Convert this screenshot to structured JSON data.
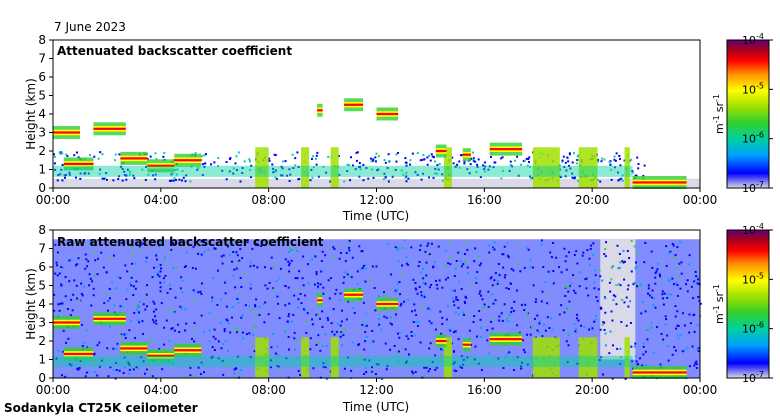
{
  "date_label": "7 June 2023",
  "footer_label": "Sodankyla CT25K ceilometer",
  "colors": {
    "clear": "#d9d9e8",
    "scale": [
      "#d9d9e8",
      "#0000ff",
      "#00a0ff",
      "#00d0a0",
      "#30d030",
      "#a0e000",
      "#ffff00",
      "#ff9000",
      "#ff0000",
      "#a00020",
      "#600080"
    ]
  },
  "chart_data": [
    {
      "type": "heatmap",
      "title": "Attenuated backscatter coefficient",
      "xlabel": "Time (UTC)",
      "ylabel": "Height (km)",
      "x_ticks": [
        "00:00",
        "04:00",
        "08:00",
        "12:00",
        "16:00",
        "20:00",
        "00:00"
      ],
      "y_ticks": [
        "0",
        "1",
        "2",
        "3",
        "4",
        "5",
        "6",
        "7",
        "8"
      ],
      "xlim_hours": [
        0,
        24
      ],
      "ylim_km": [
        0,
        8
      ],
      "colorbar": {
        "scale": "log",
        "range": [
          1e-07,
          0.0001
        ],
        "ticks": [
          "10",
          "10",
          "10",
          "10"
        ],
        "tick_exponents": [
          "-7",
          "-6",
          "-5",
          "-4"
        ],
        "unit": "m",
        "unit_exp1": "-1",
        "unit_sr": "sr",
        "unit_exp2": "-1"
      },
      "layers": [
        {
          "start_h": 0.0,
          "end_h": 1.0,
          "height_km": 3.0
        },
        {
          "start_h": 1.5,
          "end_h": 2.7,
          "height_km": 3.2
        },
        {
          "start_h": 0.4,
          "end_h": 1.5,
          "height_km": 1.3
        },
        {
          "start_h": 2.5,
          "end_h": 3.5,
          "height_km": 1.6
        },
        {
          "start_h": 3.5,
          "end_h": 4.5,
          "height_km": 1.2
        },
        {
          "start_h": 4.5,
          "end_h": 5.5,
          "height_km": 1.5
        },
        {
          "start_h": 9.8,
          "end_h": 10.0,
          "height_km": 4.2
        },
        {
          "start_h": 10.8,
          "end_h": 11.5,
          "height_km": 4.5
        },
        {
          "start_h": 12.0,
          "end_h": 12.8,
          "height_km": 4.0
        },
        {
          "start_h": 14.2,
          "end_h": 14.6,
          "height_km": 2.0
        },
        {
          "start_h": 15.2,
          "end_h": 15.5,
          "height_km": 1.8
        },
        {
          "start_h": 16.2,
          "end_h": 17.4,
          "height_km": 2.1
        },
        {
          "start_h": 21.5,
          "end_h": 23.5,
          "height_km": 0.3
        }
      ],
      "precipitation_columns": [
        {
          "start_h": 7.5,
          "end_h": 8.0
        },
        {
          "start_h": 9.2,
          "end_h": 9.5
        },
        {
          "start_h": 10.3,
          "end_h": 10.6
        },
        {
          "start_h": 14.5,
          "end_h": 14.8
        },
        {
          "start_h": 17.8,
          "end_h": 18.8
        },
        {
          "start_h": 19.5,
          "end_h": 20.2
        },
        {
          "start_h": 21.2,
          "end_h": 21.4
        }
      ]
    },
    {
      "type": "heatmap",
      "title": "Raw attenuated backscatter coefficient",
      "xlabel": "Time (UTC)",
      "ylabel": "Height (km)",
      "x_ticks": [
        "00:00",
        "04:00",
        "08:00",
        "12:00",
        "16:00",
        "20:00",
        "00:00"
      ],
      "y_ticks": [
        "0",
        "1",
        "2",
        "3",
        "4",
        "5",
        "6",
        "7",
        "8"
      ],
      "xlim_hours": [
        0,
        24
      ],
      "ylim_km": [
        0,
        8
      ],
      "colorbar": {
        "scale": "log",
        "range": [
          1e-07,
          0.0001
        ],
        "ticks": [
          "10",
          "10",
          "10",
          "10"
        ],
        "tick_exponents": [
          "-7",
          "-6",
          "-5",
          "-4"
        ],
        "unit": "m",
        "unit_exp1": "-1",
        "unit_sr": "sr",
        "unit_exp2": "-1"
      }
    }
  ]
}
